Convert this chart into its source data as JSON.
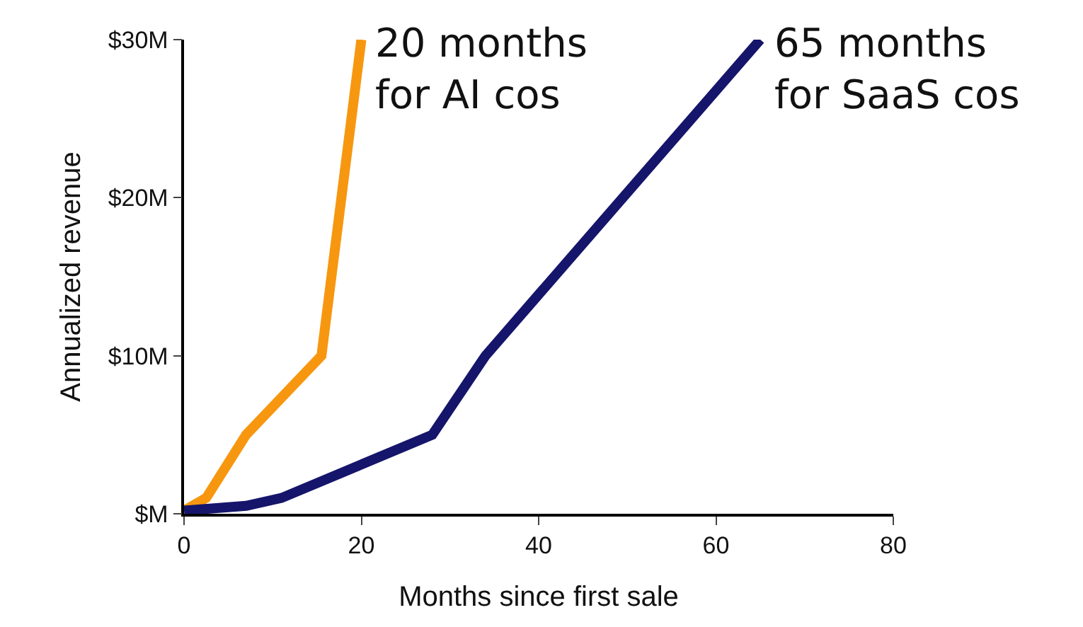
{
  "chart_data": {
    "type": "line",
    "xlabel": "Months since first sale",
    "ylabel": "Annualized revenue",
    "xlim": [
      0,
      80
    ],
    "xticks": [
      0,
      20,
      40,
      60,
      80
    ],
    "ylim": [
      0,
      30
    ],
    "yticks": [
      {
        "value": 0,
        "label": "$M"
      },
      {
        "value": 10,
        "label": "$10M"
      },
      {
        "value": 20,
        "label": "$20M"
      },
      {
        "value": 30,
        "label": "$30M"
      }
    ],
    "marker": "none",
    "line_style": "solid",
    "series": [
      {
        "color": "#f7970f",
        "x": [
          0,
          2.5,
          7,
          15.5,
          20
        ],
        "values": [
          0.2,
          1,
          5,
          10,
          30
        ]
      },
      {
        "color": "#15156b",
        "x": [
          0,
          7,
          11,
          28,
          34,
          65
        ],
        "values": [
          0.2,
          0.5,
          1,
          5,
          10,
          30
        ]
      }
    ],
    "annotations": [
      {
        "text": "20 months\nfor AI cos",
        "x": 20,
        "y": 30
      },
      {
        "text": "65 months\nfor SaaS cos",
        "x": 65,
        "y": 30
      }
    ]
  }
}
